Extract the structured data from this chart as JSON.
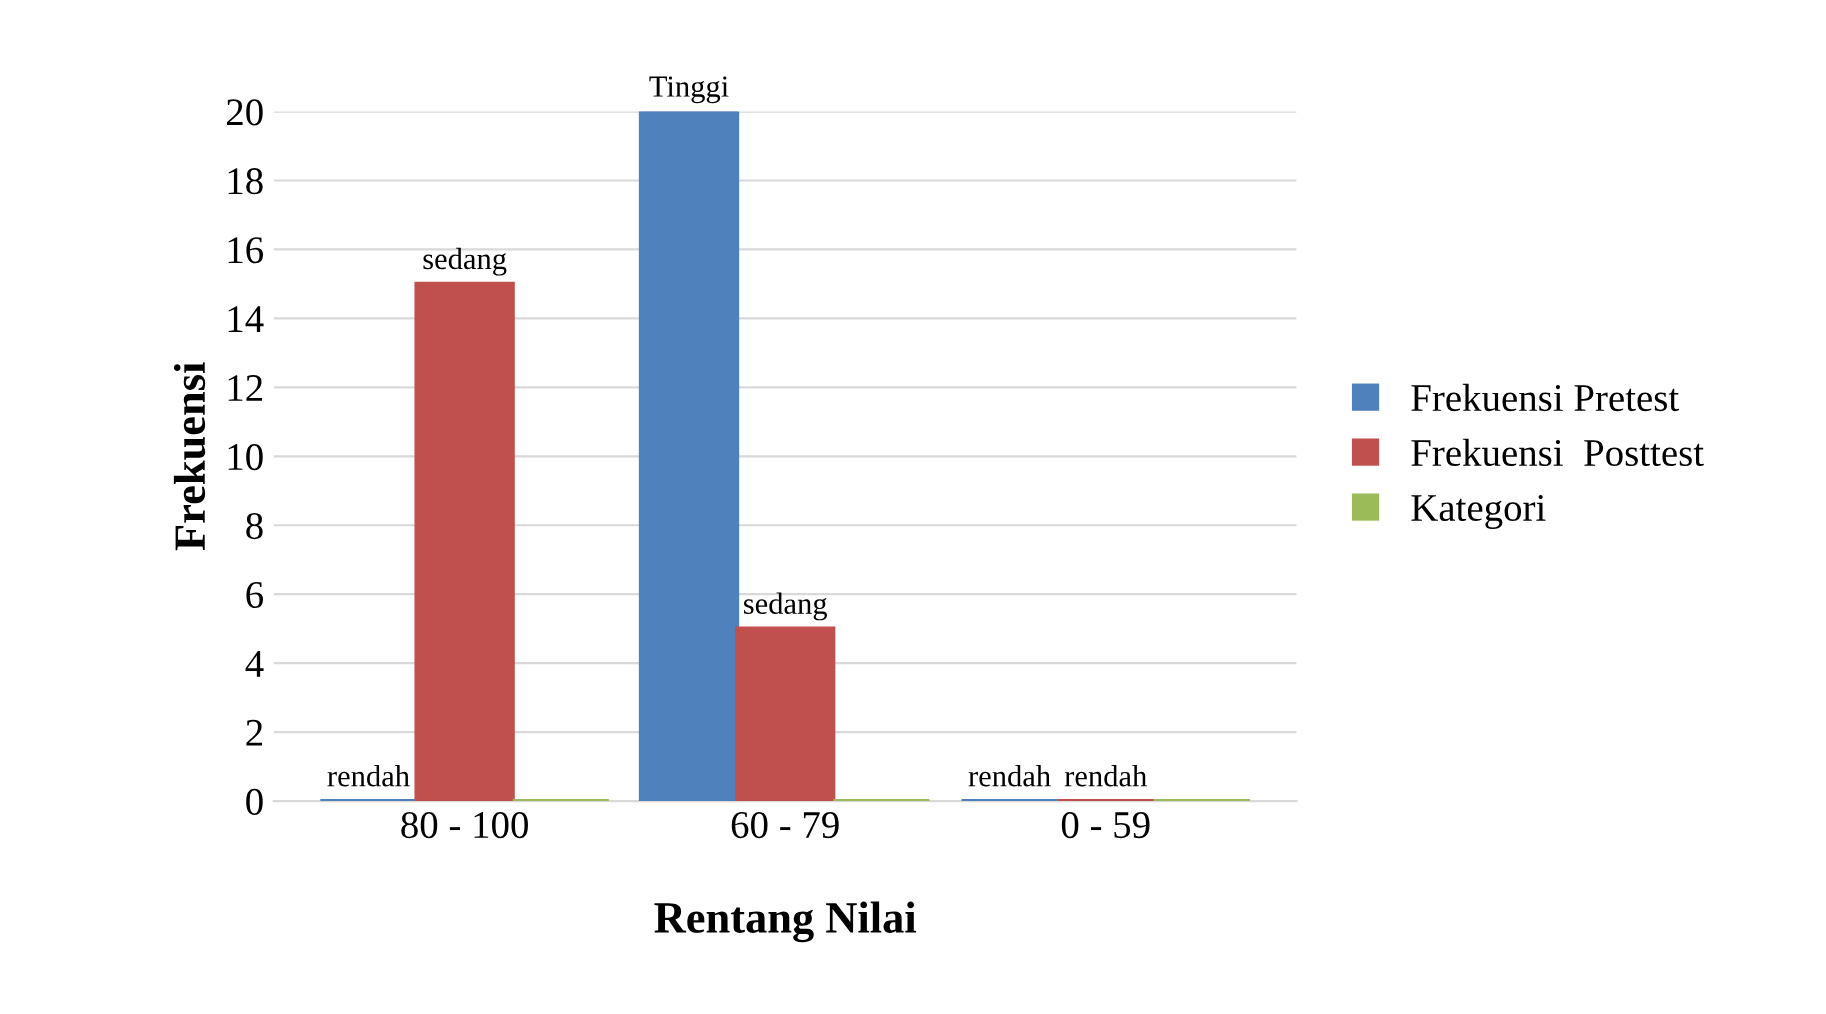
{
  "chart_data": {
    "type": "bar",
    "xlabel": "Rentang Nilai",
    "ylabel": "Frekuensi",
    "categories": [
      "80 - 100",
      "60 - 79",
      "0 - 59"
    ],
    "series": [
      {
        "name": "Frekuensi Pretest",
        "color": "#4f81bd",
        "values": [
          0,
          20,
          0
        ],
        "value_labels": [
          "rendah",
          "Tinggi",
          "rendah"
        ]
      },
      {
        "name": "Frekuensi  Posttest",
        "color": "#c0504d",
        "values": [
          15,
          5,
          0
        ],
        "value_labels": [
          "sedang",
          "sedang",
          "rendah"
        ]
      },
      {
        "name": "Kategori",
        "color": "#9bbb59",
        "values": [
          0,
          0,
          0
        ]
      }
    ],
    "ylim": [
      0,
      20
    ],
    "yticks": [
      0,
      2,
      4,
      6,
      8,
      10,
      12,
      14,
      16,
      18,
      20
    ],
    "grid": "y",
    "legend": "right"
  }
}
